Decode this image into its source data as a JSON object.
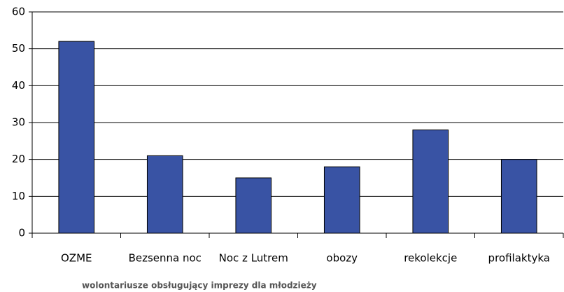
{
  "chart_data": {
    "type": "bar",
    "categories": [
      "OZME",
      "Bezsenna noc",
      "Noc z Lutrem",
      "obozy",
      "rekolekcje",
      "profilaktyka"
    ],
    "values": [
      52,
      21,
      15,
      18,
      28,
      20
    ],
    "color": "#3953a4",
    "ylim": [
      0,
      60
    ],
    "yticks": [
      0,
      10,
      20,
      30,
      40,
      50,
      60
    ],
    "grid": true,
    "xlabel": "wolontariusze obsługujący imprezy dla młodzieży"
  }
}
